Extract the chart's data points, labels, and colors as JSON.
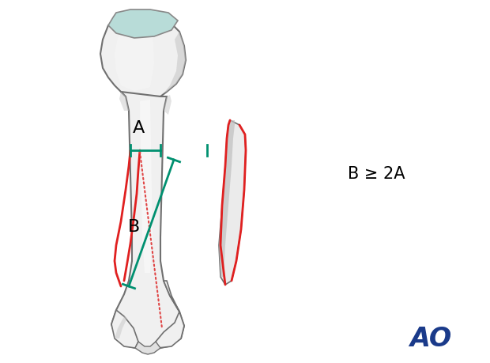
{
  "background_color": "#ffffff",
  "bone_fill": "#f0f0f0",
  "bone_edge": "#707070",
  "bone_shadow": "#c8c8c8",
  "bone_light": "#f8f8f8",
  "cartilage_fill": "#b8dcd8",
  "cartilage_edge": "#888888",
  "fracture_red": "#e02020",
  "fracture_dot": "#e04545",
  "measure_green": "#009070",
  "label_A": "A",
  "label_B": "B",
  "label_formula": "B ≥ 2A",
  "ao_color": "#1a3a8a",
  "ao_text": "AO",
  "figsize": [
    6.2,
    4.59
  ],
  "dpi": 100
}
